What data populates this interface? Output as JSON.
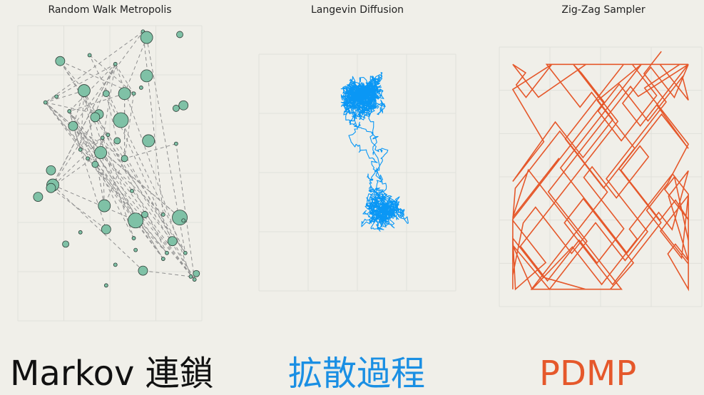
{
  "colors": {
    "background": "#f0efe9",
    "grid": "#e0e0da",
    "rwm_point": "#7fc1a6",
    "langevin": "#0a97f5",
    "zigzag": "#e5582b",
    "caption1": "#111111",
    "caption2": "#1a8fe3",
    "caption3": "#e5582b"
  },
  "captions": [
    "Markov 連鎖",
    "拡散過程",
    "PDMP"
  ],
  "chart_data": [
    {
      "type": "scatter",
      "title": "Random Walk Metropolis",
      "grid": true,
      "xlim": [
        0,
        10
      ],
      "ylim": [
        0,
        10
      ],
      "x": [
        6.8,
        8.8,
        7.0,
        3.9,
        2.3,
        5.3,
        7.0,
        6.7,
        3.6,
        6.3,
        4.8,
        2.1,
        5.8,
        1.5,
        9.0,
        8.6,
        2.8,
        4.4,
        4.2,
        5.6,
        3.0,
        4.9,
        4.6,
        5.4,
        7.1,
        8.6,
        3.4,
        4.5,
        5.8,
        3.8,
        4.2,
        1.8,
        1.9,
        6.2,
        1.8,
        1.1,
        4.7,
        6.9,
        7.9,
        8.8,
        6.4,
        9.0,
        4.8,
        3.4,
        6.3,
        8.4,
        2.6,
        6.4,
        8.1,
        9.1,
        7.9,
        5.3,
        6.8,
        9.7,
        9.4,
        9.6,
        4.8
      ],
      "y": [
        9.8,
        9.7,
        9.6,
        9.0,
        8.8,
        8.7,
        8.3,
        7.9,
        7.8,
        7.7,
        7.7,
        7.6,
        7.7,
        7.4,
        7.3,
        7.2,
        7.1,
        7.0,
        6.9,
        6.8,
        6.6,
        6.3,
        6.2,
        6.1,
        6.1,
        6.0,
        5.8,
        5.7,
        5.5,
        5.5,
        5.3,
        5.1,
        4.6,
        4.4,
        4.5,
        4.2,
        3.9,
        3.6,
        3.6,
        3.5,
        3.4,
        3.4,
        3.1,
        3.0,
        2.8,
        2.7,
        2.6,
        2.4,
        2.3,
        2.3,
        2.1,
        1.9,
        1.7,
        1.6,
        1.5,
        1.4,
        1.2
      ],
      "size": [
        1,
        2,
        4,
        1,
        3,
        1,
        4,
        1,
        4,
        1,
        2,
        1,
        4,
        1,
        3,
        2,
        1,
        3,
        3,
        5,
        3,
        1,
        1,
        2,
        4,
        1,
        1,
        4,
        2,
        1,
        2,
        3,
        4,
        1,
        3,
        3,
        4,
        2,
        1,
        5,
        5,
        1,
        3,
        1,
        1,
        3,
        2,
        1,
        1,
        1,
        1,
        1,
        3,
        2,
        1,
        1,
        1
      ]
    },
    {
      "type": "line",
      "title": "Langevin Diffusion",
      "grid": true,
      "xlim": [
        -4,
        4
      ],
      "ylim": [
        -6,
        4
      ],
      "seed": 7,
      "steps": 3400
    },
    {
      "type": "line",
      "title": "Zig-Zag Sampler",
      "grid": true,
      "xlim": [
        -3,
        3
      ],
      "ylim": [
        -3,
        3
      ],
      "seed": 11
    }
  ]
}
